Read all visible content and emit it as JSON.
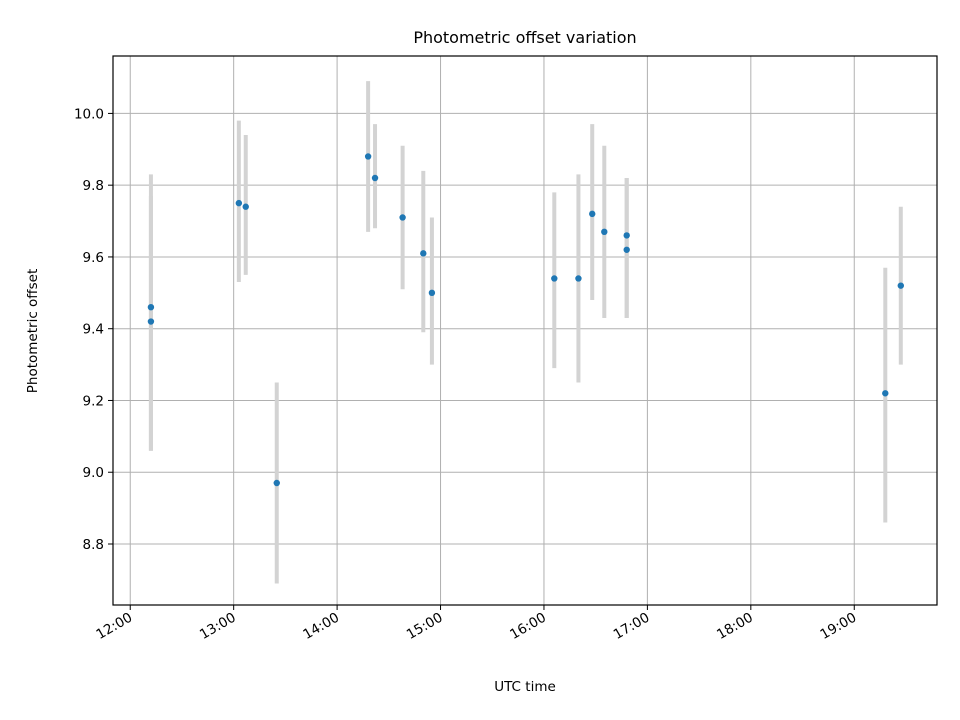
{
  "chart_data": {
    "type": "scatter",
    "title": "Photometric offset variation",
    "xlabel": "UTC time",
    "ylabel": "Photometric offset",
    "x_ticks": [
      "12:00",
      "13:00",
      "14:00",
      "15:00",
      "16:00",
      "17:00",
      "18:00",
      "19:00"
    ],
    "y_ticks": [
      "8.8",
      "9.0",
      "9.2",
      "9.4",
      "9.6",
      "9.8",
      "10.0"
    ],
    "xlim": [
      "11:50",
      "19:48"
    ],
    "ylim": [
      8.63,
      10.16
    ],
    "grid": true,
    "colors": {
      "point": "#1f77b4",
      "error_bar": "#d3d3d3",
      "grid": "#b0b0b0"
    },
    "series": [
      {
        "points": [
          {
            "time": "12:12",
            "y": 9.46,
            "yerr_low": 9.06,
            "yerr_high": 9.77
          },
          {
            "time": "12:12",
            "y": 9.42,
            "yerr_low": 9.06,
            "yerr_high": 9.83
          },
          {
            "time": "13:03",
            "y": 9.75,
            "yerr_low": 9.53,
            "yerr_high": 9.98
          },
          {
            "time": "13:07",
            "y": 9.74,
            "yerr_low": 9.55,
            "yerr_high": 9.94
          },
          {
            "time": "13:25",
            "y": 8.97,
            "yerr_low": 8.69,
            "yerr_high": 9.25
          },
          {
            "time": "14:18",
            "y": 9.88,
            "yerr_low": 9.67,
            "yerr_high": 10.09
          },
          {
            "time": "14:22",
            "y": 9.82,
            "yerr_low": 9.68,
            "yerr_high": 9.97
          },
          {
            "time": "14:38",
            "y": 9.71,
            "yerr_low": 9.51,
            "yerr_high": 9.91
          },
          {
            "time": "14:50",
            "y": 9.61,
            "yerr_low": 9.39,
            "yerr_high": 9.84
          },
          {
            "time": "14:55",
            "y": 9.5,
            "yerr_low": 9.3,
            "yerr_high": 9.71
          },
          {
            "time": "16:06",
            "y": 9.54,
            "yerr_low": 9.29,
            "yerr_high": 9.78
          },
          {
            "time": "16:20",
            "y": 9.54,
            "yerr_low": 9.25,
            "yerr_high": 9.83
          },
          {
            "time": "16:28",
            "y": 9.72,
            "yerr_low": 9.48,
            "yerr_high": 9.97
          },
          {
            "time": "16:35",
            "y": 9.67,
            "yerr_low": 9.43,
            "yerr_high": 9.91
          },
          {
            "time": "16:48",
            "y": 9.66,
            "yerr_low": 9.43,
            "yerr_high": 9.82
          },
          {
            "time": "16:48",
            "y": 9.62,
            "yerr_low": 9.43,
            "yerr_high": 9.82
          },
          {
            "time": "19:18",
            "y": 9.22,
            "yerr_low": 8.86,
            "yerr_high": 9.57
          },
          {
            "time": "19:27",
            "y": 9.52,
            "yerr_low": 9.3,
            "yerr_high": 9.74
          }
        ]
      }
    ]
  }
}
